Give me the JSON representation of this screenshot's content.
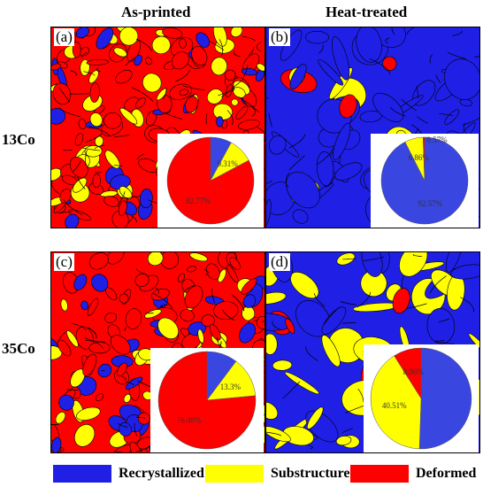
{
  "columns": [
    "As-printed",
    "Heat-treated"
  ],
  "rows": [
    "13Co",
    "35Co"
  ],
  "colors": {
    "recrystallized": "#1f1fe6",
    "substructured": "#ffff00",
    "deformed": "#ff0000",
    "pie_recrystallized": "#3a46e0"
  },
  "legend": [
    {
      "label": "Recrystallized",
      "color": "#1f1fe6"
    },
    {
      "label": "Substructured",
      "color": "#ffff00"
    },
    {
      "label": "Deformed",
      "color": "#ff0000"
    }
  ],
  "panels": [
    {
      "label": "(a)",
      "background": "deformed",
      "pie": {
        "recrystallized": 7.92,
        "substructured": 9.31,
        "deformed": 82.77,
        "labels": {
          "recrystallized": "",
          "substructured": "9.31%",
          "deformed": "82.77%"
        }
      }
    },
    {
      "label": "(b)",
      "background": "recrystallized",
      "pie": {
        "recrystallized": 92.57,
        "substructured": 6.86,
        "deformed": 0.57,
        "labels": {
          "recrystallized": "92.57%",
          "substructured": "6.86%",
          "deformed": "0.57%"
        }
      }
    },
    {
      "label": "(c)",
      "background": "deformed",
      "pie": {
        "recrystallized": 10.22,
        "substructured": 13.3,
        "deformed": 76.48,
        "labels": {
          "recrystallized": "",
          "substructured": "13.3%",
          "deformed": "76.48%"
        }
      }
    },
    {
      "label": "(d)",
      "background": "recrystallized",
      "pie": {
        "recrystallized": 50.53,
        "substructured": 40.51,
        "deformed": 8.96,
        "labels": {
          "recrystallized": "",
          "substructured": "40.51%",
          "deformed": "8.96%"
        }
      }
    }
  ]
}
